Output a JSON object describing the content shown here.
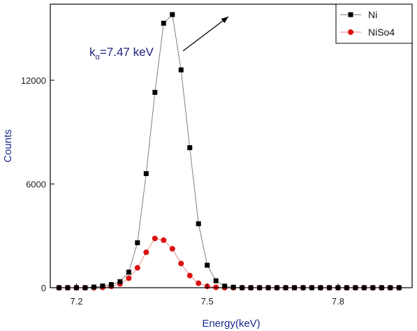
{
  "chart_data": {
    "type": "line",
    "xlabel": "Energy(keV)",
    "ylabel": "Counts",
    "xlim": [
      7.14,
      7.97
    ],
    "ylim": [
      0,
      16400
    ],
    "xticks": [
      7.2,
      7.5,
      7.8
    ],
    "xtick_labels": [
      "7.2",
      "7.5",
      "7.8"
    ],
    "yticks": [
      0,
      6000,
      12000
    ],
    "ytick_labels": [
      "0",
      "6000",
      "12000"
    ],
    "grid": false,
    "legend_position": "top-right",
    "series": [
      {
        "name": "Ni",
        "color": "#000000",
        "marker": "square",
        "x": [
          7.16,
          7.18,
          7.2,
          7.22,
          7.24,
          7.26,
          7.28,
          7.3,
          7.32,
          7.34,
          7.36,
          7.38,
          7.4,
          7.42,
          7.44,
          7.46,
          7.48,
          7.5,
          7.52,
          7.54,
          7.56,
          7.58,
          7.6,
          7.62,
          7.64,
          7.66,
          7.68,
          7.7,
          7.72,
          7.74,
          7.76,
          7.78,
          7.8,
          7.82,
          7.84,
          7.86,
          7.88,
          7.9,
          7.92,
          7.94
        ],
        "y": [
          0,
          0,
          0,
          0,
          40,
          100,
          180,
          350,
          900,
          2600,
          6600,
          11300,
          15300,
          15800,
          12600,
          8100,
          3700,
          1300,
          400,
          90,
          30,
          0,
          0,
          0,
          0,
          0,
          0,
          0,
          0,
          0,
          0,
          0,
          0,
          0,
          0,
          0,
          0,
          0,
          0,
          0
        ]
      },
      {
        "name": "NiSo4",
        "color": "#dd1111",
        "marker": "circle",
        "x": [
          7.16,
          7.18,
          7.2,
          7.22,
          7.24,
          7.26,
          7.28,
          7.3,
          7.32,
          7.34,
          7.36,
          7.38,
          7.4,
          7.42,
          7.44,
          7.46,
          7.48,
          7.5,
          7.52,
          7.54,
          7.56,
          7.58,
          7.6,
          7.62,
          7.64,
          7.66,
          7.68,
          7.7,
          7.72,
          7.74,
          7.76,
          7.78,
          7.8,
          7.82,
          7.84,
          7.86,
          7.88,
          7.9,
          7.92,
          7.94
        ],
        "y": [
          0,
          0,
          0,
          0,
          0,
          20,
          80,
          220,
          550,
          1150,
          2050,
          2850,
          2750,
          2250,
          1400,
          700,
          260,
          80,
          20,
          0,
          0,
          0,
          0,
          0,
          0,
          0,
          0,
          0,
          0,
          0,
          0,
          0,
          0,
          0,
          0,
          0,
          0,
          0,
          0,
          0
        ]
      }
    ],
    "annotation": {
      "base": "k",
      "sub": "α",
      "rest": "=7.47 keV",
      "x": 7.555,
      "y": 15800
    }
  }
}
